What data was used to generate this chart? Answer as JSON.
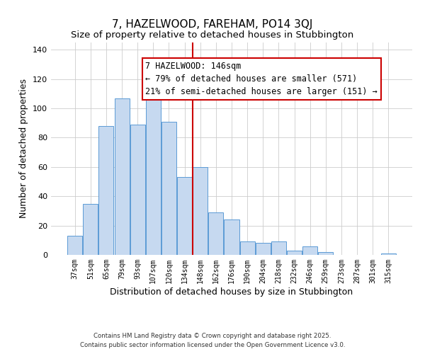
{
  "title": "7, HAZELWOOD, FAREHAM, PO14 3QJ",
  "subtitle": "Size of property relative to detached houses in Stubbington",
  "xlabel": "Distribution of detached houses by size in Stubbington",
  "ylabel": "Number of detached properties",
  "footnote1": "Contains HM Land Registry data © Crown copyright and database right 2025.",
  "footnote2": "Contains public sector information licensed under the Open Government Licence v3.0.",
  "bar_labels": [
    "37sqm",
    "51sqm",
    "65sqm",
    "79sqm",
    "93sqm",
    "107sqm",
    "120sqm",
    "134sqm",
    "148sqm",
    "162sqm",
    "176sqm",
    "190sqm",
    "204sqm",
    "218sqm",
    "232sqm",
    "246sqm",
    "259sqm",
    "273sqm",
    "287sqm",
    "301sqm",
    "315sqm"
  ],
  "bar_values": [
    13,
    35,
    88,
    107,
    89,
    108,
    91,
    53,
    60,
    29,
    24,
    9,
    8,
    9,
    3,
    6,
    2,
    0,
    0,
    0,
    1
  ],
  "bar_color": "#c6d9f0",
  "bar_edge_color": "#5b9bd5",
  "vline_color": "#cc0000",
  "ylim": [
    0,
    145
  ],
  "yticks": [
    0,
    20,
    40,
    60,
    80,
    100,
    120,
    140
  ],
  "annotation_title": "7 HAZELWOOD: 146sqm",
  "annotation_line1": "← 79% of detached houses are smaller (571)",
  "annotation_line2": "21% of semi-detached houses are larger (151) →",
  "annotation_box_color": "#cc0000",
  "title_fontsize": 11,
  "annotation_fontsize": 8.5,
  "background_color": "#ffffff"
}
